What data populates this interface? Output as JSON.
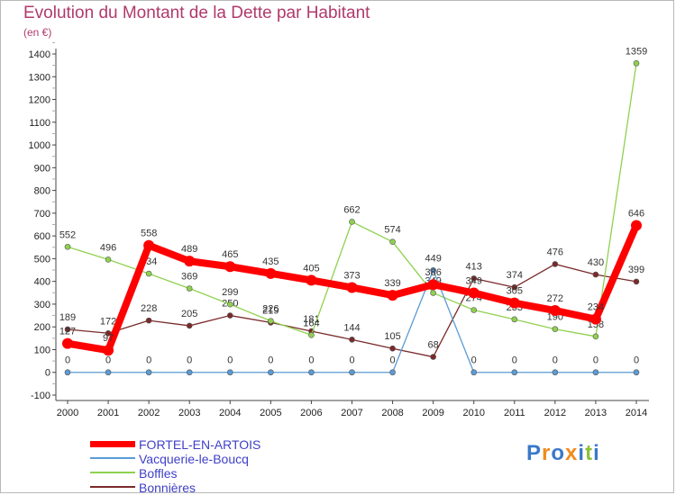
{
  "title": "Evolution du Montant de la Dette par Habitant",
  "unit": "(en €)",
  "logo": {
    "text": "Proxiti",
    "colors": [
      "#3a78c9",
      "#f08b1e",
      "#3a78c9",
      "#f08b1e",
      "#3a78c9",
      "#8fbf3a",
      "#3a78c9"
    ]
  },
  "chart_data": {
    "type": "line",
    "title": "Evolution du Montant de la Dette par Habitant",
    "ylabel": "(en €)",
    "xlabel": "",
    "categories": [
      "2000",
      "2001",
      "2002",
      "2003",
      "2004",
      "2005",
      "2006",
      "2007",
      "2008",
      "2009",
      "2010",
      "2011",
      "2012",
      "2013",
      "2014"
    ],
    "ylim": [
      -100,
      1400
    ],
    "yticks": [
      -100,
      0,
      100,
      200,
      300,
      400,
      500,
      600,
      700,
      800,
      900,
      1000,
      1100,
      1200,
      1300,
      1400
    ],
    "grid": false,
    "legend_position": "bottom-left",
    "series": [
      {
        "name": "FORTEL-EN-ARTOIS",
        "color": "#ff0000",
        "values": [
          127,
          97,
          558,
          489,
          465,
          435,
          405,
          373,
          339,
          386,
          349,
          305,
          272,
          234,
          646
        ]
      },
      {
        "name": "Vacquerie-le-Boucq",
        "color": "#5b9bd5",
        "values": [
          0,
          0,
          0,
          0,
          0,
          0,
          0,
          0,
          0,
          449,
          0,
          0,
          0,
          0,
          0
        ]
      },
      {
        "name": "Boffles",
        "color": "#8fd14f",
        "values": [
          552,
          496,
          434,
          369,
          299,
          226,
          164,
          662,
          574,
          349,
          274,
          233,
          190,
          158,
          1359
        ]
      },
      {
        "name": "Bonnières",
        "color": "#7a2a2a",
        "values": [
          189,
          172,
          228,
          205,
          250,
          219,
          181,
          144,
          105,
          68,
          413,
          374,
          476,
          430,
          399
        ]
      }
    ]
  }
}
